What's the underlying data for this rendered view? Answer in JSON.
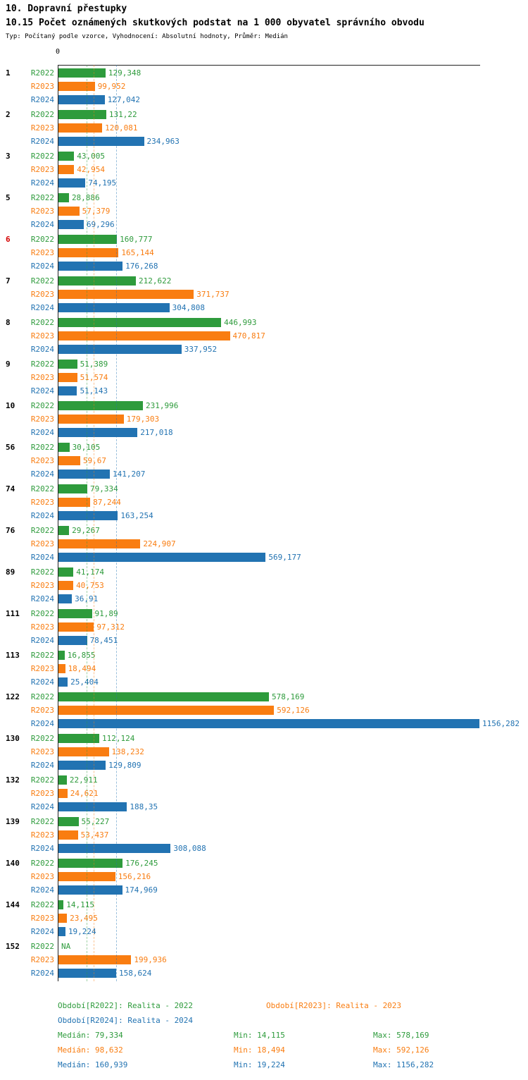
{
  "header": {
    "title": "10. Dopravní přestupky",
    "subtitle": "10.15 Počet oznámených skutkových podstat na 1 000 obyvatel správního obvodu",
    "meta": "Typ: Počítaný podle vzorce, Vyhodnocení: Absolutní hodnoty, Průměr: Medián"
  },
  "chart_data": {
    "type": "bar",
    "orientation": "horizontal",
    "title": "10.15 Počet oznámených skutkových podstat na 1 000 obyvatel správního obvodu",
    "axis_zero_label": "0",
    "xlim": [
      0,
      1156.282
    ],
    "grid": false,
    "categories": [
      "1",
      "2",
      "3",
      "5",
      "6",
      "7",
      "8",
      "9",
      "10",
      "56",
      "74",
      "76",
      "89",
      "111",
      "113",
      "122",
      "130",
      "132",
      "139",
      "140",
      "144",
      "152"
    ],
    "highlighted_categories": [
      "6"
    ],
    "series": [
      {
        "name": "R2022",
        "color": "#2e9b3c",
        "median": 79.334,
        "values": [
          129.348,
          131.22,
          43.005,
          28.886,
          160.777,
          212.622,
          446.993,
          51.389,
          231.996,
          30.105,
          79.334,
          29.267,
          41.174,
          91.89,
          16.855,
          578.169,
          112.124,
          22.911,
          55.227,
          176.245,
          14.115,
          null
        ],
        "labels": [
          "129,348",
          "131,22",
          "43,005",
          "28,886",
          "160,777",
          "212,622",
          "446,993",
          "51,389",
          "231,996",
          "30,105",
          "79,334",
          "29,267",
          "41,174",
          "91,89",
          "16,855",
          "578,169",
          "112,124",
          "22,911",
          "55,227",
          "176,245",
          "14,115",
          "NA"
        ]
      },
      {
        "name": "R2023",
        "color": "#f97d11",
        "median": 98.632,
        "values": [
          99.952,
          120.081,
          42.954,
          57.379,
          165.144,
          371.737,
          470.817,
          51.574,
          179.303,
          59.67,
          87.244,
          224.907,
          40.753,
          97.312,
          18.494,
          592.126,
          138.232,
          24.621,
          53.437,
          156.216,
          23.495,
          199.936
        ],
        "labels": [
          "99,952",
          "120,081",
          "42,954",
          "57,379",
          "165,144",
          "371,737",
          "470,817",
          "51,574",
          "179,303",
          "59,67",
          "87,244",
          "224,907",
          "40,753",
          "97,312",
          "18,494",
          "592,126",
          "138,232",
          "24,621",
          "53,437",
          "156,216",
          "23,495",
          "199,936"
        ]
      },
      {
        "name": "R2024",
        "color": "#2273b2",
        "median": 160.939,
        "values": [
          127.042,
          234.963,
          74.195,
          69.296,
          176.268,
          304.808,
          337.952,
          51.143,
          217.018,
          141.207,
          163.254,
          569.177,
          36.91,
          78.451,
          25.404,
          1156.282,
          129.809,
          188.35,
          308.088,
          174.969,
          19.224,
          158.624
        ],
        "labels": [
          "127,042",
          "234,963",
          "74,195",
          "69,296",
          "176,268",
          "304,808",
          "337,952",
          "51,143",
          "217,018",
          "141,207",
          "163,254",
          "569,177",
          "36,91",
          "78,451",
          "25,404",
          "1156,282",
          "129,809",
          "188,35",
          "308,088",
          "174,969",
          "19,224",
          "158,624"
        ]
      }
    ]
  },
  "legend": {
    "period_rows": [
      [
        {
          "series": "R2022",
          "text": "Období[R2022]: Realita - 2022"
        },
        {
          "series": "R2023",
          "text": "Období[R2023]: Realita - 2023"
        }
      ],
      [
        {
          "series": "R2024",
          "text": "Období[R2024]: Realita - 2024"
        }
      ]
    ],
    "stat_rows": [
      {
        "series": "R2022",
        "median": "Medián: 79,334",
        "min": "Min: 14,115",
        "max": "Max: 578,169"
      },
      {
        "series": "R2023",
        "median": "Medián: 98,632",
        "min": "Min: 18,494",
        "max": "Max: 592,126"
      },
      {
        "series": "R2024",
        "median": "Medián: 160,939",
        "min": "Min: 19,224",
        "max": "Max: 1156,282"
      }
    ]
  }
}
